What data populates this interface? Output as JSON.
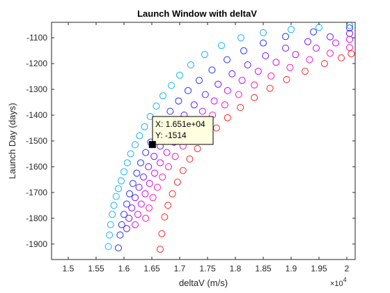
{
  "chart_data": {
    "type": "scatter",
    "title": "Launch Window with deltaV",
    "xlabel": "deltaV (m/s)",
    "ylabel": "Launch Day (days)",
    "x_exponent_label": "×10",
    "x_exponent_power": "4",
    "xlim": [
      14700,
      20150
    ],
    "ylim": [
      -1960,
      -1040
    ],
    "x_ticks": [
      15000,
      15500,
      16000,
      16500,
      17000,
      17500,
      18000,
      18500,
      19000,
      19500,
      20000
    ],
    "x_tick_labels": [
      "1.5",
      "1.55",
      "1.6",
      "1.65",
      "1.7",
      "1.75",
      "1.8",
      "1.85",
      "1.9",
      "1.95",
      "2"
    ],
    "y_ticks": [
      -1900,
      -1800,
      -1700,
      -1600,
      -1500,
      -1400,
      -1300,
      -1200,
      -1100
    ],
    "y_tick_labels": [
      "-1900",
      "-1800",
      "-1700",
      "-1600",
      "-1500",
      "-1400",
      "-1300",
      "-1200",
      "-1100"
    ],
    "marker": "open-circle",
    "grid": false,
    "colors": {
      "axis": "#262626",
      "series_gradient": [
        "#00b4ff",
        "#2020ff",
        "#8000ff",
        "#ff00ff",
        "#ff0040"
      ],
      "tooltip_border": "#000000",
      "tooltip_fill": "#ffffe0"
    },
    "series": [
      {
        "color": "#10b0ff",
        "points": [
          [
            15720,
            -1910
          ],
          [
            15740,
            -1865
          ],
          [
            15760,
            -1825
          ],
          [
            15790,
            -1785
          ],
          [
            15820,
            -1750
          ],
          [
            15860,
            -1715
          ],
          [
            15900,
            -1685
          ],
          [
            15950,
            -1655
          ],
          [
            16000,
            -1620
          ],
          [
            16060,
            -1585
          ],
          [
            16120,
            -1550
          ],
          [
            16200,
            -1515
          ],
          [
            16280,
            -1480
          ],
          [
            16370,
            -1445
          ],
          [
            16470,
            -1405
          ],
          [
            16580,
            -1365
          ],
          [
            16700,
            -1325
          ],
          [
            16850,
            -1285
          ],
          [
            17000,
            -1245
          ],
          [
            17200,
            -1205
          ],
          [
            17450,
            -1165
          ],
          [
            17750,
            -1130
          ],
          [
            18100,
            -1100
          ],
          [
            18500,
            -1080
          ],
          [
            19000,
            -1068
          ],
          [
            19500,
            -1060
          ],
          [
            20050,
            -1052
          ]
        ]
      },
      {
        "color": "#2030ff",
        "points": [
          [
            15900,
            -1915
          ],
          [
            15930,
            -1865
          ],
          [
            15960,
            -1825
          ],
          [
            16000,
            -1785
          ],
          [
            16050,
            -1745
          ],
          [
            16100,
            -1705
          ],
          [
            16160,
            -1665
          ],
          [
            16230,
            -1625
          ],
          [
            16300,
            -1585
          ],
          [
            16390,
            -1545
          ],
          [
            16480,
            -1505
          ],
          [
            16580,
            -1465
          ],
          [
            16700,
            -1425
          ],
          [
            16830,
            -1385
          ],
          [
            16980,
            -1345
          ],
          [
            17150,
            -1305
          ],
          [
            17350,
            -1265
          ],
          [
            17580,
            -1225
          ],
          [
            17850,
            -1185
          ],
          [
            18150,
            -1150
          ],
          [
            18500,
            -1120
          ],
          [
            18900,
            -1095
          ],
          [
            19400,
            -1077
          ],
          [
            20050,
            -1062
          ]
        ]
      },
      {
        "color": "#7010ff",
        "points": [
          [
            16050,
            -1840
          ],
          [
            16090,
            -1800
          ],
          [
            16140,
            -1760
          ],
          [
            16200,
            -1720
          ],
          [
            16270,
            -1680
          ],
          [
            16350,
            -1640
          ],
          [
            16440,
            -1600
          ],
          [
            16540,
            -1560
          ],
          [
            16650,
            -1520
          ],
          [
            16780,
            -1480
          ],
          [
            16920,
            -1440
          ],
          [
            17080,
            -1400
          ],
          [
            17260,
            -1360
          ],
          [
            17460,
            -1320
          ],
          [
            17690,
            -1280
          ],
          [
            17940,
            -1240
          ],
          [
            18220,
            -1205
          ],
          [
            18540,
            -1170
          ],
          [
            18900,
            -1140
          ],
          [
            19300,
            -1115
          ],
          [
            19700,
            -1096
          ],
          [
            20050,
            -1083
          ]
        ]
      },
      {
        "color": "#d000ff",
        "points": [
          [
            16200,
            -1825
          ],
          [
            16250,
            -1785
          ],
          [
            16310,
            -1745
          ],
          [
            16380,
            -1705
          ],
          [
            16460,
            -1665
          ],
          [
            16550,
            -1625
          ],
          [
            16650,
            -1585
          ],
          [
            16770,
            -1545
          ],
          [
            16900,
            -1505
          ],
          [
            17050,
            -1465
          ],
          [
            17220,
            -1425
          ],
          [
            17410,
            -1385
          ],
          [
            17620,
            -1345
          ],
          [
            17860,
            -1305
          ],
          [
            18120,
            -1265
          ],
          [
            18410,
            -1230
          ],
          [
            18730,
            -1195
          ],
          [
            19080,
            -1165
          ],
          [
            19450,
            -1140
          ],
          [
            19800,
            -1120
          ],
          [
            20050,
            -1106
          ]
        ]
      },
      {
        "color": "#ff10c0",
        "points": [
          [
            16390,
            -1800
          ],
          [
            16450,
            -1760
          ],
          [
            16520,
            -1720
          ],
          [
            16600,
            -1680
          ],
          [
            16690,
            -1640
          ],
          [
            16800,
            -1600
          ],
          [
            16920,
            -1560
          ],
          [
            17060,
            -1520
          ],
          [
            17210,
            -1480
          ],
          [
            17390,
            -1440
          ],
          [
            17590,
            -1400
          ],
          [
            17810,
            -1360
          ],
          [
            18060,
            -1320
          ],
          [
            18340,
            -1283
          ],
          [
            18640,
            -1248
          ],
          [
            18980,
            -1215
          ],
          [
            19330,
            -1185
          ],
          [
            19700,
            -1160
          ],
          [
            20050,
            -1138
          ]
        ]
      },
      {
        "color": "#ff2020",
        "points": [
          [
            16650,
            -1920
          ],
          [
            16680,
            -1860
          ],
          [
            16730,
            -1795
          ],
          [
            16790,
            -1750
          ],
          [
            16870,
            -1705
          ],
          [
            16960,
            -1660
          ],
          [
            17060,
            -1615
          ],
          [
            17180,
            -1570
          ],
          [
            17320,
            -1530
          ],
          [
            17480,
            -1490
          ],
          [
            17660,
            -1450
          ],
          [
            17860,
            -1410
          ],
          [
            18090,
            -1370
          ],
          [
            18340,
            -1332
          ],
          [
            18620,
            -1296
          ],
          [
            18920,
            -1262
          ],
          [
            19250,
            -1230
          ],
          [
            19600,
            -1200
          ],
          [
            19900,
            -1178
          ],
          [
            20080,
            -1162
          ]
        ]
      }
    ],
    "datatip": {
      "x_text": "X: 1.651e+04",
      "y_text": "Y: -1514",
      "x": 16510,
      "y": -1514
    }
  }
}
